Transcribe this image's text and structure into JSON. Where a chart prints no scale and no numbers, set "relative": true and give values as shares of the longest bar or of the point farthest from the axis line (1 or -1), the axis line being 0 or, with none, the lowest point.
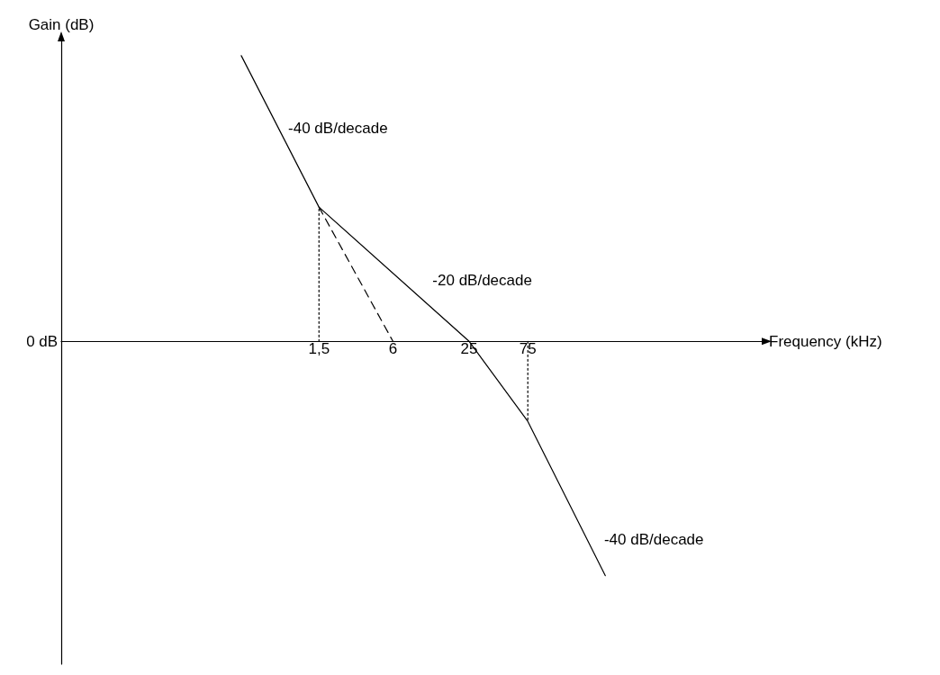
{
  "chart_data": {
    "type": "line",
    "relative": true,
    "log": "x",
    "xlabel": "Frequency (kHz)",
    "ylabel": "Gain (dB)",
    "xlim": [
      0.012,
      6000
    ],
    "xticks": [
      {
        "value": 1.5,
        "label": "1,5"
      },
      6,
      25,
      75
    ],
    "grid": false,
    "marker": "none",
    "series": [
      {
        "color": "#000000",
        "x": [
          0.35,
          1.5,
          25,
          75,
          320
        ],
        "values": [
          1,
          0.47,
          0,
          -0.28,
          -0.82
        ],
        "line_style": "solid"
      },
      {
        "color": "#000000",
        "x": [
          1.5,
          6
        ],
        "values": [
          0.47,
          0
        ],
        "line_style": "dashed"
      },
      {
        "color": "#000000",
        "x": [
          1.5,
          1.5
        ],
        "values": [
          0,
          0.47
        ],
        "line_style": "dotted"
      },
      {
        "color": "#000000",
        "x": [
          75,
          75
        ],
        "values": [
          0,
          -0.28
        ],
        "line_style": "dotted"
      }
    ],
    "annotations": [
      "-40 dB/decade",
      "-20 dB/decade",
      "-40 dB/decade",
      "0 dB"
    ]
  }
}
